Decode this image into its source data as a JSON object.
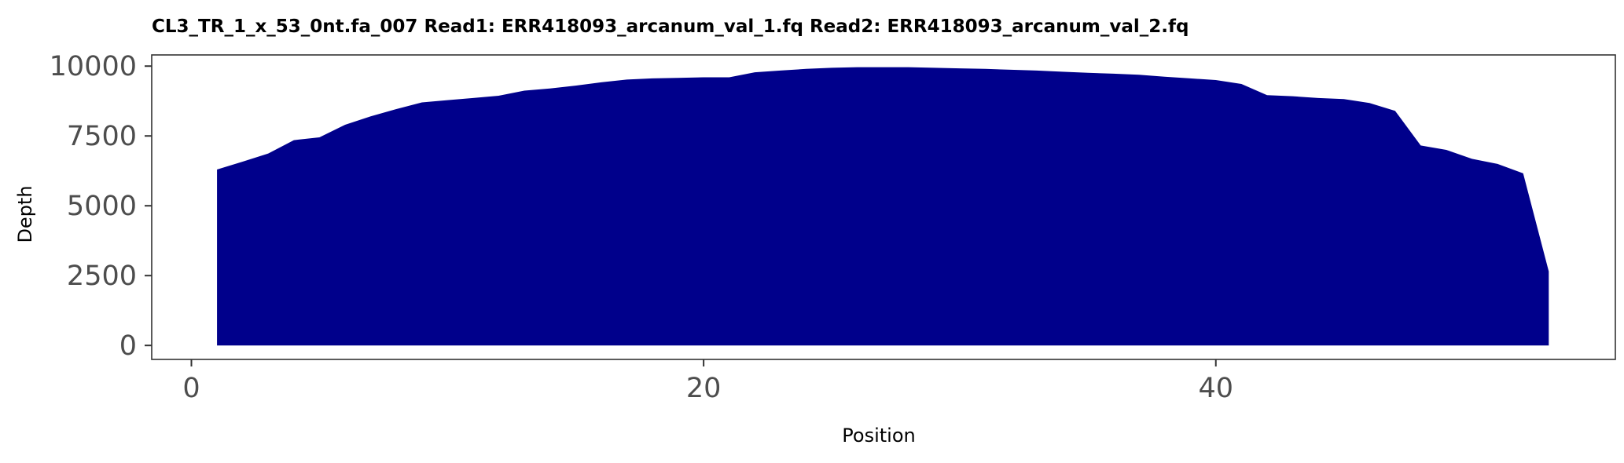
{
  "chart_data": {
    "type": "area",
    "title": "CL3_TR_1_x_53_0nt.fa_007   Read1: ERR418093_arcanum_val_1.fq   Read2: ERR418093_arcanum_val_2.fq",
    "xlabel": "Position",
    "ylabel": "Depth",
    "xlim": [
      -1.55,
      55.6
    ],
    "ylim": [
      -500,
      10400
    ],
    "xticks": [
      0,
      20,
      40
    ],
    "xtick_labels": [
      "0",
      "20",
      "40"
    ],
    "yticks": [
      0,
      2500,
      5000,
      7500,
      10000
    ],
    "ytick_labels": [
      "0",
      "2500",
      "5000",
      "7500",
      "10000"
    ],
    "grid": false,
    "fill_color": "#00008b",
    "x": [
      1,
      2,
      3,
      4,
      5,
      6,
      7,
      8,
      9,
      10,
      11,
      12,
      13,
      14,
      15,
      16,
      17,
      18,
      19,
      20,
      21,
      22,
      23,
      24,
      25,
      26,
      27,
      28,
      29,
      30,
      31,
      32,
      33,
      34,
      35,
      36,
      37,
      38,
      39,
      40,
      41,
      42,
      43,
      44,
      45,
      46,
      47,
      48,
      49,
      50,
      51,
      52,
      53
    ],
    "values": [
      6300,
      6580,
      6870,
      7350,
      7450,
      7900,
      8200,
      8460,
      8700,
      8780,
      8860,
      8940,
      9120,
      9200,
      9300,
      9420,
      9520,
      9560,
      9580,
      9600,
      9600,
      9780,
      9840,
      9900,
      9940,
      9960,
      9960,
      9960,
      9940,
      9920,
      9900,
      9870,
      9840,
      9800,
      9760,
      9730,
      9690,
      9620,
      9560,
      9500,
      9360,
      8960,
      8920,
      8860,
      8820,
      8680,
      8400,
      7160,
      7000,
      6680,
      6500,
      6160,
      2650
    ]
  }
}
